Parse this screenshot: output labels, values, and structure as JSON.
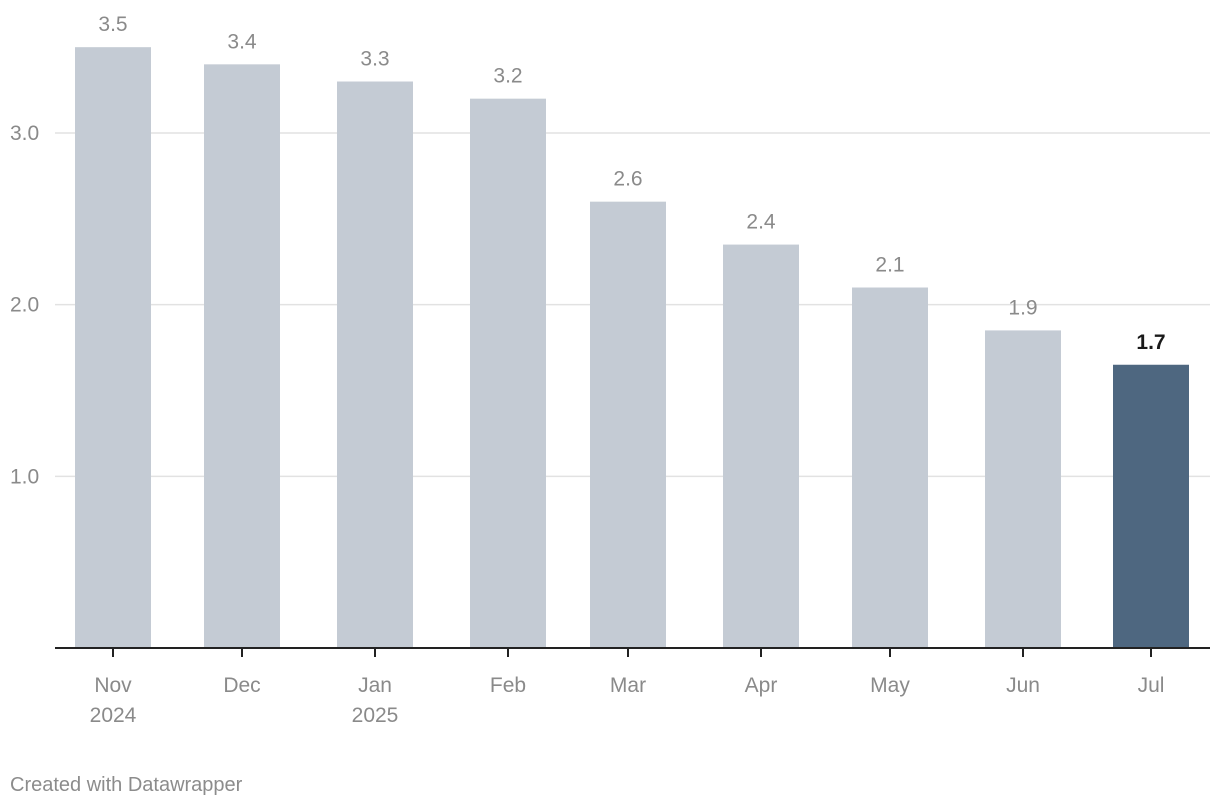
{
  "chart_data": {
    "type": "bar",
    "title": "",
    "xlabel": "",
    "ylabel": "",
    "categories": [
      [
        "Nov",
        "2024"
      ],
      [
        "Dec"
      ],
      [
        "Jan",
        "2025"
      ],
      [
        "Feb"
      ],
      [
        "Mar"
      ],
      [
        "Apr"
      ],
      [
        "May"
      ],
      [
        "Jun"
      ],
      [
        "Jul"
      ]
    ],
    "values": [
      3.5,
      3.4,
      3.3,
      3.2,
      2.6,
      2.35,
      2.1,
      1.85,
      1.65
    ],
    "value_labels": [
      "3.5",
      "3.4",
      "3.3",
      "3.2",
      "2.6",
      "2.4",
      "2.1",
      "1.9",
      "1.7"
    ],
    "highlight_index": 8,
    "ylim": [
      0,
      3.6
    ],
    "yticks": [
      1.0,
      2.0,
      3.0
    ],
    "ytick_labels": [
      "1.0",
      "2.0",
      "3.0"
    ],
    "grid": true,
    "legend": "none",
    "colors": {
      "bar": "#c4cbd4",
      "highlight_bar": "#4e6780",
      "label": "#8a8a8a",
      "highlight_label": "#1a1a1a",
      "grid": "#e2e2e2",
      "axis": "#222222",
      "tick_label": "#8a8a8a"
    }
  },
  "footer": {
    "credit": "Created with Datawrapper"
  }
}
